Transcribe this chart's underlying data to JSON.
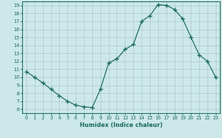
{
  "x": [
    0,
    1,
    2,
    3,
    4,
    5,
    6,
    7,
    8,
    9,
    10,
    11,
    12,
    13,
    14,
    15,
    16,
    17,
    18,
    19,
    20,
    21,
    22,
    23
  ],
  "y": [
    10.7,
    10.0,
    9.3,
    8.5,
    7.7,
    7.0,
    6.5,
    6.3,
    6.2,
    8.5,
    11.8,
    12.3,
    13.5,
    14.1,
    17.0,
    17.7,
    19.1,
    19.0,
    18.5,
    17.3,
    15.0,
    12.8,
    12.0,
    10.0
  ],
  "line_color": "#1a6b5a",
  "marker": "+",
  "marker_size": 4,
  "bg_color": "#cce8e8",
  "grid_color": "#b0cccc",
  "xlabel": "Humidex (Indice chaleur)",
  "xlim": [
    -0.5,
    23.5
  ],
  "ylim": [
    5.5,
    19.5
  ],
  "xtick_labels": [
    "0",
    "1",
    "2",
    "3",
    "4",
    "5",
    "6",
    "7",
    "8",
    "9",
    "10",
    "11",
    "12",
    "13",
    "14",
    "15",
    "16",
    "17",
    "18",
    "19",
    "20",
    "21",
    "22",
    "23"
  ],
  "ytick_values": [
    6,
    7,
    8,
    9,
    10,
    11,
    12,
    13,
    14,
    15,
    16,
    17,
    18,
    19
  ]
}
